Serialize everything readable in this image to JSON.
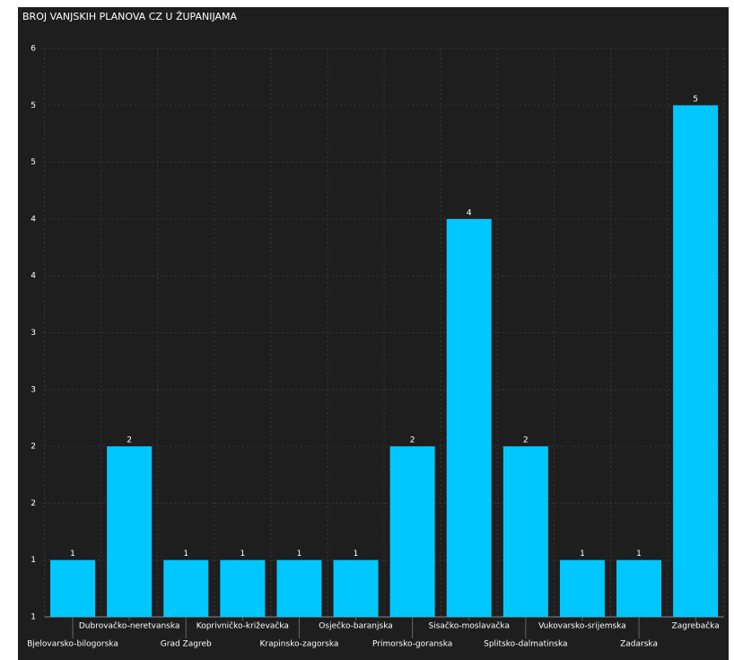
{
  "chart_data": {
    "type": "bar",
    "title": "BROJ VANJSKIH PLANOVA CZ U ŽUPANIJAMA",
    "categories": [
      "Bjelovarsko-bilogorska",
      "Dubrovačko-neretvanska",
      "Grad Zagreb",
      "Koprivničko-križevačka",
      "Krapinsko-zagorska",
      "Osječko-baranjska",
      "Primorsko-goranska",
      "Sisačko-moslavačka",
      "Splitsko-dalmatinska",
      "Vukovarsko-srijemska",
      "Zadarska",
      "Zagrebačka"
    ],
    "values": [
      1,
      2,
      1,
      1,
      1,
      1,
      2,
      4,
      2,
      1,
      1,
      5
    ],
    "color": "#00c8ff",
    "ylim": [
      0.5,
      5.5
    ],
    "yticks": [
      {
        "value": 0.5,
        "label": "1"
      },
      {
        "value": 1,
        "label": "1"
      },
      {
        "value": 1.5,
        "label": "2"
      },
      {
        "value": 2,
        "label": "2"
      },
      {
        "value": 2.5,
        "label": "3"
      },
      {
        "value": 3,
        "label": "3"
      },
      {
        "value": 3.5,
        "label": "4"
      },
      {
        "value": 4,
        "label": "4"
      },
      {
        "value": 4.5,
        "label": "5"
      },
      {
        "value": 5,
        "label": "5"
      },
      {
        "value": 5.5,
        "label": "6"
      }
    ],
    "grid": true
  }
}
